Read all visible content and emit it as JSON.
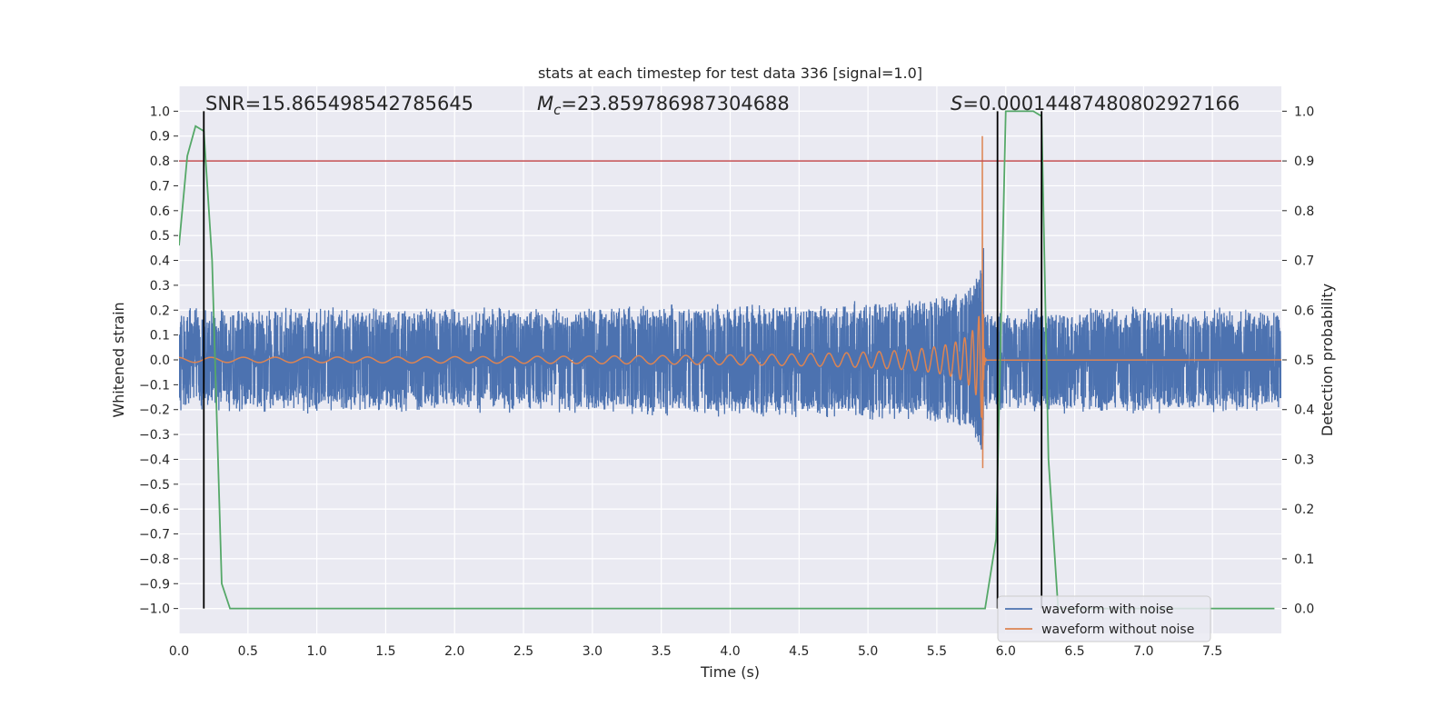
{
  "chart_data": {
    "type": "line",
    "title": "stats at each timestep for test data 336 [signal=1.0]",
    "xlabel": "Time (s)",
    "ylabel": "Whitened strain",
    "y2label": "Detection probability",
    "xlim": [
      0,
      8
    ],
    "ylim": [
      -1.1,
      1.1
    ],
    "y2lim": [
      -0.05,
      1.05
    ],
    "x_ticks": [
      "0.0",
      "0.5",
      "1.0",
      "1.5",
      "2.0",
      "2.5",
      "3.0",
      "3.5",
      "4.0",
      "4.5",
      "5.0",
      "5.5",
      "6.0",
      "6.5",
      "7.0",
      "7.5"
    ],
    "y_ticks": [
      "1.0",
      "0.9",
      "0.8",
      "0.7",
      "0.6",
      "0.5",
      "0.4",
      "0.3",
      "0.2",
      "0.1",
      "0.0",
      "−0.1",
      "−0.2",
      "−0.3",
      "−0.4",
      "−0.5",
      "−0.6",
      "−0.7",
      "−0.8",
      "−0.9",
      "−1.0"
    ],
    "y2_ticks": [
      "1.0",
      "0.9",
      "0.8",
      "0.7",
      "0.6",
      "0.5",
      "0.4",
      "0.3",
      "0.2",
      "0.1",
      "0.0"
    ],
    "grid": true,
    "legend_position": "bottom-right",
    "annotations": {
      "snr": "SNR=15.865498542785645",
      "mc_symbol": "M",
      "mc_sub": "c",
      "mc_value": "=23.859786987304688",
      "s_symbol": "S",
      "s_value": "=0.00014487480802927166"
    },
    "vertical_lines_x": [
      0.18,
      5.94,
      6.26
    ],
    "threshold_probability": 0.9,
    "series": [
      {
        "name": "waveform with noise",
        "color": "#4c72b0",
        "noise_amplitude": 0.14,
        "merger_time": 5.83,
        "merger_peak": 0.9
      },
      {
        "name": "waveform without noise",
        "color": "#dd8452",
        "start_amplitude": 0.01,
        "merger_time": 5.83,
        "merger_peak": 0.95
      },
      {
        "color": "#55a868",
        "x": [
          0.0,
          0.06,
          0.12,
          0.18,
          0.24,
          0.31,
          0.37,
          5.85,
          5.93,
          6.0,
          6.06,
          6.12,
          6.2,
          6.26,
          6.31,
          6.38,
          7.95
        ],
        "y": [
          0.73,
          0.91,
          0.97,
          0.96,
          0.7,
          0.05,
          0.0,
          0.0,
          0.14,
          1.0,
          1.0,
          1.0,
          1.0,
          0.99,
          0.3,
          0.0,
          0.0
        ]
      }
    ],
    "colors": {
      "plot_bg": "#eaeaf2",
      "grid": "#ffffff",
      "threshold": "#c44e52",
      "vline": "#000000",
      "text": "#262626"
    }
  }
}
